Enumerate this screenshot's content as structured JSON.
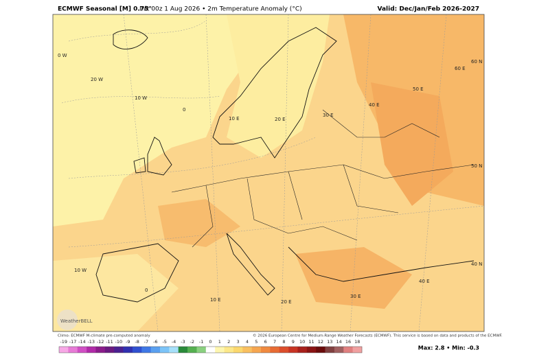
{
  "header": {
    "title_main": "ECMWF Seasonal [M] 0.75°",
    "title_detail": "Init 00z 1 Aug 2026 • 2m Temperature Anomaly (°C)",
    "valid": "Valid: Dec/Jan/Feb 2026-2027"
  },
  "map": {
    "graticule_labels": [
      "0 W",
      "20 W",
      "10 W",
      "0",
      "10 E",
      "20 E",
      "30 E",
      "40 E",
      "50 E",
      "60 E",
      "60 N",
      "50 N",
      "40 N",
      "40 E",
      "30 E",
      "20 E",
      "10 E",
      "0",
      "10 W"
    ],
    "logo": "WeatherBELL"
  },
  "footer": {
    "climo": "Climo: ECMWF M-climate pre-computed anomaly",
    "copyright": "© 2026 European Centre for Medium-Range Weather Forecasts (ECMWF). This service is based on data and products of the ECMWF.",
    "stats": "Max: 2.8 • Min: -0.3"
  },
  "colorbar": {
    "labels": [
      "-19",
      "-17",
      "-14",
      "-13",
      "-12",
      "-11",
      "-10",
      "-9",
      "-8",
      "-7",
      "-6",
      "-5",
      "-4",
      "-3",
      "-2",
      "-1",
      "0",
      "1",
      "2",
      "3",
      "4",
      "5",
      "6",
      "7",
      "8",
      "9",
      "10",
      "11",
      "12",
      "13",
      "14",
      "16",
      "18"
    ],
    "colors": [
      "#f7a8e6",
      "#e77bd6",
      "#d04fc4",
      "#b02aa8",
      "#8a1c8a",
      "#6a1a80",
      "#4a2090",
      "#3030b0",
      "#3050d0",
      "#3f78e6",
      "#5aa0f0",
      "#7cc4f8",
      "#a6e0fa",
      "#2a8a3a",
      "#55b050",
      "#8ad080",
      "#ffffff",
      "#fdf6b0",
      "#fce88a",
      "#fbd86e",
      "#f9c060",
      "#f6a650",
      "#f08a40",
      "#e86c34",
      "#dc4e2c",
      "#c83424",
      "#a8201c",
      "#8a1414",
      "#6a0c0c",
      "#804040",
      "#a06060",
      "#e08080",
      "#f0a0a0"
    ]
  }
}
